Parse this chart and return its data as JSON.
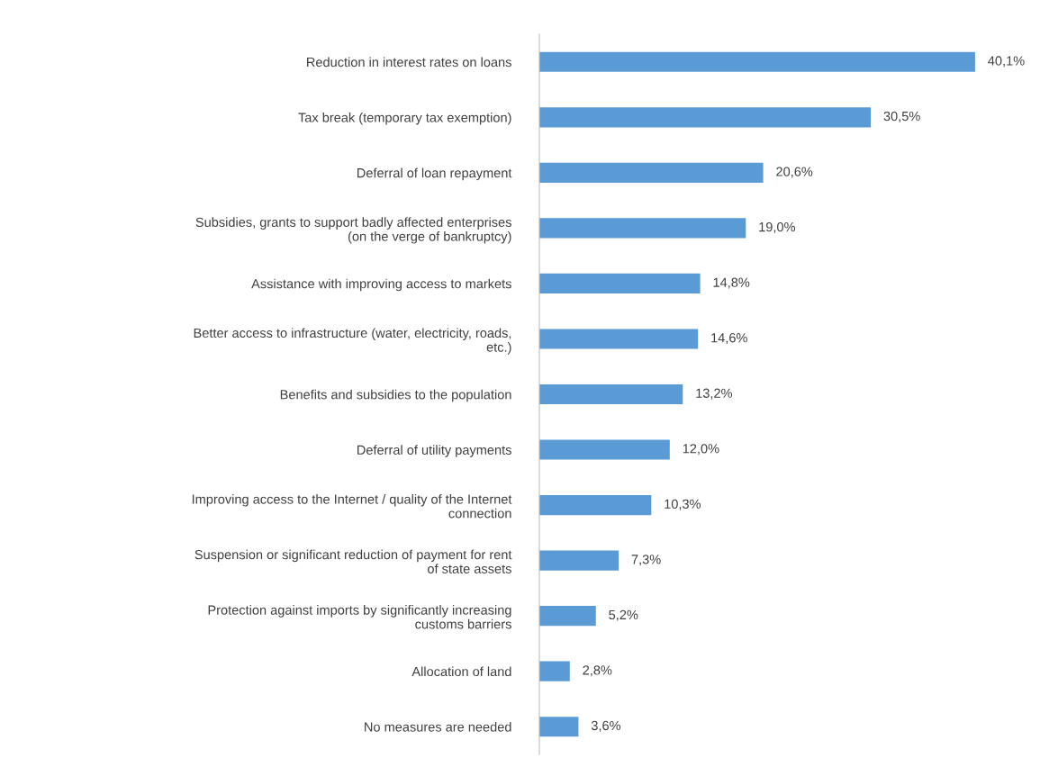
{
  "chart_data": {
    "type": "bar",
    "orientation": "horizontal",
    "color": "#5b9bd5",
    "categories": [
      "Reduction in interest rates on loans",
      "Tax break (temporary tax exemption)",
      "Deferral of loan repayment",
      "Subsidies, grants to support badly affected enterprises\n(on the verge of bankruptcy)",
      "Assistance with improving access to markets",
      "Better access to infrastructure (water, electricity, roads,\netc.)",
      "Benefits and subsidies to the population",
      "Deferral of utility payments",
      "Improving access to the Internet / quality of the Internet\nconnection",
      "Suspension or significant reduction of payment for rent\nof state assets",
      "Protection against imports by significantly increasing\ncustoms barriers",
      "Allocation of land",
      "No measures are needed"
    ],
    "values": [
      40.1,
      30.5,
      20.6,
      19.0,
      14.8,
      14.6,
      13.2,
      12.0,
      10.3,
      7.3,
      5.2,
      2.8,
      3.6
    ],
    "value_labels": [
      "40,1%",
      "30,5%",
      "20,6%",
      "19,0%",
      "14,8%",
      "14,6%",
      "13,2%",
      "12,0%",
      "10,3%",
      "7,3%",
      "5,2%",
      "2,8%",
      "3,6%"
    ],
    "tick_labels": "y",
    "grid": false,
    "legend": false
  }
}
